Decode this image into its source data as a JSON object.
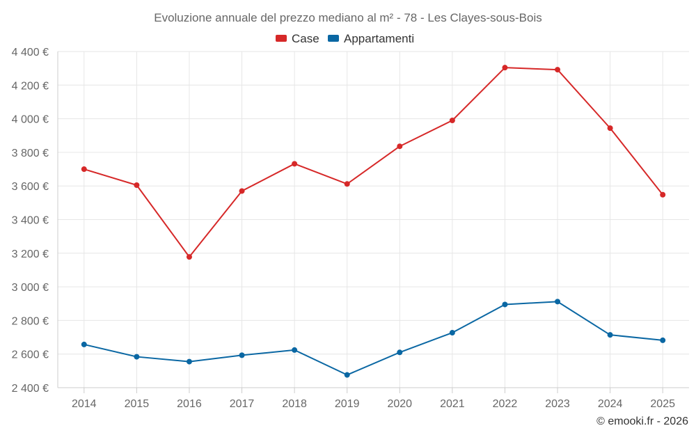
{
  "chart_data": {
    "type": "line",
    "title": "Evoluzione annuale del prezzo mediano al m² - 78 - Les Clayes-sous-Bois",
    "categories": [
      "2014",
      "2015",
      "2016",
      "2017",
      "2018",
      "2019",
      "2020",
      "2021",
      "2022",
      "2023",
      "2024",
      "2025"
    ],
    "series": [
      {
        "name": "Case",
        "color": "#d62828",
        "values": [
          3700,
          3605,
          3178,
          3570,
          3732,
          3612,
          3836,
          3990,
          4304,
          4292,
          3944,
          3548
        ]
      },
      {
        "name": "Appartamenti",
        "color": "#0a67a3",
        "values": [
          2657,
          2584,
          2555,
          2593,
          2624,
          2476,
          2610,
          2727,
          2895,
          2912,
          2714,
          2682
        ]
      }
    ],
    "y_ticks": [
      2400,
      2600,
      2800,
      3000,
      3200,
      3400,
      3600,
      3800,
      4000,
      4200,
      4400
    ],
    "y_tick_labels": [
      "2 400 €",
      "2 600 €",
      "2 800 €",
      "3 000 €",
      "3 200 €",
      "3 400 €",
      "3 600 €",
      "3 800 €",
      "4 000 €",
      "4 200 €",
      "4 400 €"
    ],
    "ylim": [
      2400,
      4400
    ],
    "xlabel": "",
    "ylabel": "",
    "grid": true,
    "legend_position": "top-center"
  },
  "credit": "© emooki.fr - 2026"
}
